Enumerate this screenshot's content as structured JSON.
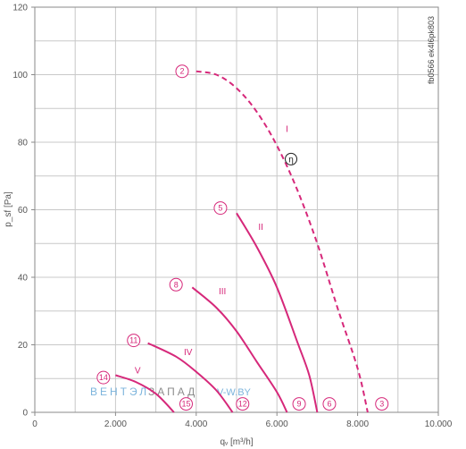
{
  "chart_data": {
    "type": "line",
    "title": "",
    "xlabel": "qᵥ [m³/h]",
    "ylabel": "p_sf [Pa]",
    "xlim": [
      0,
      10000
    ],
    "ylim": [
      0,
      120
    ],
    "grid": true,
    "x_ticks": [
      0,
      2000,
      4000,
      6000,
      8000,
      10000
    ],
    "x_tick_labels": [
      "0",
      "2.000",
      "4.000",
      "6.000",
      "8.000",
      "10.000"
    ],
    "y_ticks": [
      0,
      20,
      40,
      60,
      80,
      100,
      120
    ],
    "y_tick_labels": [
      "0",
      "20",
      "40",
      "60",
      "80",
      "100",
      "120"
    ],
    "side_note": "fb0566 ek4l6pk803",
    "watermark": {
      "part1": "ВЕНТЭЛ",
      "part2": "ЗАПАД",
      "part3": "V-W.BY"
    },
    "series": [
      {
        "name": "I",
        "style": "dashed",
        "color": "#d6287a",
        "points": [
          [
            4000,
            101
          ],
          [
            4500,
            100
          ],
          [
            5000,
            96
          ],
          [
            5500,
            89
          ],
          [
            6000,
            79
          ],
          [
            6500,
            66
          ],
          [
            7000,
            50
          ],
          [
            7500,
            31
          ],
          [
            8000,
            13
          ],
          [
            8250,
            0
          ]
        ],
        "start_marker": "2",
        "start_marker_pos": [
          3650,
          101
        ],
        "end_marker": "3",
        "end_marker_pos": [
          8600,
          2.5
        ],
        "label_pos": [
          6250,
          83
        ]
      },
      {
        "name": "II",
        "style": "solid",
        "color": "#d6287a",
        "points": [
          [
            5000,
            59
          ],
          [
            5500,
            49
          ],
          [
            6000,
            37
          ],
          [
            6500,
            21
          ],
          [
            6800,
            11
          ],
          [
            7000,
            0
          ]
        ],
        "start_marker": "5",
        "start_marker_pos": [
          4600,
          60.5
        ],
        "end_marker": "6",
        "end_marker_pos": [
          7300,
          2.5
        ],
        "label_pos": [
          5600,
          54
        ]
      },
      {
        "name": "III",
        "style": "solid",
        "color": "#d6287a",
        "points": [
          [
            3900,
            37
          ],
          [
            4500,
            31
          ],
          [
            5000,
            24
          ],
          [
            5500,
            15
          ],
          [
            6000,
            6
          ],
          [
            6250,
            0
          ]
        ],
        "start_marker": "8",
        "start_marker_pos": [
          3500,
          37.8
        ],
        "end_marker": "9",
        "end_marker_pos": [
          6550,
          2.5
        ],
        "label_pos": [
          4650,
          35
        ]
      },
      {
        "name": "IV",
        "style": "solid",
        "color": "#d6287a",
        "points": [
          [
            2800,
            20.5
          ],
          [
            3500,
            16.5
          ],
          [
            4000,
            12
          ],
          [
            4500,
            6.5
          ],
          [
            4900,
            0
          ]
        ],
        "start_marker": "11",
        "start_marker_pos": [
          2450,
          21.3
        ],
        "end_marker": "12",
        "end_marker_pos": [
          5150,
          2.5
        ],
        "label_pos": [
          3800,
          17
        ]
      },
      {
        "name": "V",
        "style": "solid",
        "color": "#d6287a",
        "points": [
          [
            2000,
            11
          ],
          [
            2500,
            9
          ],
          [
            3000,
            5.5
          ],
          [
            3450,
            0
          ]
        ],
        "start_marker": "14",
        "start_marker_pos": [
          1700,
          10.3
        ],
        "end_marker": "15",
        "end_marker_pos": [
          3750,
          2.5
        ],
        "label_pos": [
          2550,
          11.5
        ]
      }
    ],
    "annotations": [
      {
        "text": "η",
        "pos": [
          6350,
          75
        ]
      }
    ]
  }
}
